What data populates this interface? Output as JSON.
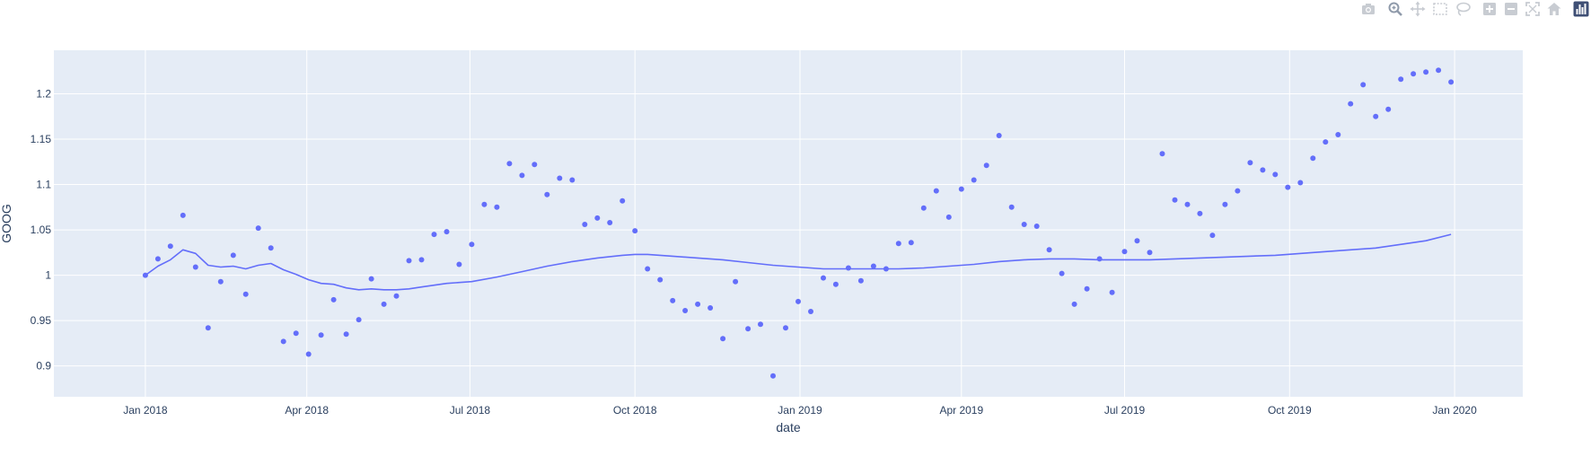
{
  "modebar": {
    "buttons": [
      {
        "icon": "camera-icon",
        "label": "Download plot as a png"
      },
      {
        "icon": "zoom-icon",
        "label": "Zoom"
      },
      {
        "icon": "pan-icon",
        "label": "Pan"
      },
      {
        "icon": "box-select-icon",
        "label": "Box Select"
      },
      {
        "icon": "lasso-select-icon",
        "label": "Lasso Select"
      },
      {
        "icon": "zoom-in-icon",
        "label": "Zoom in"
      },
      {
        "icon": "zoom-out-icon",
        "label": "Zoom out"
      },
      {
        "icon": "autoscale-icon",
        "label": "Autoscale"
      },
      {
        "icon": "reset-axes-icon",
        "label": "Reset axes"
      },
      {
        "icon": "plotly-logo-icon",
        "label": "Produced with Plotly"
      }
    ]
  },
  "colors": {
    "plot_bg": "#e5ecf6",
    "grid": "#ffffff",
    "series": "#636efa",
    "text": "#2a3f5f",
    "modebar_icon": "#c8ccd2",
    "modebar_active": "#8f9aaa"
  },
  "chart_data": {
    "type": "scatter",
    "xlabel": "date",
    "ylabel": "GOOG",
    "x_range": [
      "2017-11-11",
      "2020-02-08"
    ],
    "y_range": [
      0.866,
      1.248
    ],
    "grid": true,
    "legend": "none",
    "x_ticks": [
      {
        "date": "2018-01-01",
        "label": "Jan 2018"
      },
      {
        "date": "2018-04-01",
        "label": "Apr 2018"
      },
      {
        "date": "2018-07-01",
        "label": "Jul 2018"
      },
      {
        "date": "2018-10-01",
        "label": "Oct 2018"
      },
      {
        "date": "2019-01-01",
        "label": "Jan 2019"
      },
      {
        "date": "2019-04-01",
        "label": "Apr 2019"
      },
      {
        "date": "2019-07-01",
        "label": "Jul 2019"
      },
      {
        "date": "2019-10-01",
        "label": "Oct 2019"
      },
      {
        "date": "2020-01-01",
        "label": "Jan 2020"
      }
    ],
    "y_ticks": [
      {
        "value": 0.9,
        "label": "0.9"
      },
      {
        "value": 0.95,
        "label": "0.95"
      },
      {
        "value": 1.0,
        "label": "1"
      },
      {
        "value": 1.05,
        "label": "1.05"
      },
      {
        "value": 1.1,
        "label": "1.1"
      },
      {
        "value": 1.15,
        "label": "1.15"
      },
      {
        "value": 1.2,
        "label": "1.2"
      }
    ],
    "series": [
      {
        "mode": "markers",
        "x": [
          "2018-01-01",
          "2018-01-08",
          "2018-01-15",
          "2018-01-22",
          "2018-01-29",
          "2018-02-05",
          "2018-02-12",
          "2018-02-19",
          "2018-02-26",
          "2018-03-05",
          "2018-03-12",
          "2018-03-19",
          "2018-03-26",
          "2018-04-02",
          "2018-04-09",
          "2018-04-16",
          "2018-04-23",
          "2018-04-30",
          "2018-05-07",
          "2018-05-14",
          "2018-05-21",
          "2018-05-28",
          "2018-06-04",
          "2018-06-11",
          "2018-06-18",
          "2018-06-25",
          "2018-07-02",
          "2018-07-09",
          "2018-07-16",
          "2018-07-23",
          "2018-07-30",
          "2018-08-06",
          "2018-08-13",
          "2018-08-20",
          "2018-08-27",
          "2018-09-03",
          "2018-09-10",
          "2018-09-17",
          "2018-09-24",
          "2018-10-01",
          "2018-10-08",
          "2018-10-15",
          "2018-10-22",
          "2018-10-29",
          "2018-11-05",
          "2018-11-12",
          "2018-11-19",
          "2018-11-26",
          "2018-12-03",
          "2018-12-10",
          "2018-12-17",
          "2018-12-24",
          "2018-12-31",
          "2019-01-07",
          "2019-01-14",
          "2019-01-21",
          "2019-01-28",
          "2019-02-04",
          "2019-02-11",
          "2019-02-18",
          "2019-02-25",
          "2019-03-04",
          "2019-03-11",
          "2019-03-18",
          "2019-03-25",
          "2019-04-01",
          "2019-04-08",
          "2019-04-15",
          "2019-04-22",
          "2019-04-29",
          "2019-05-06",
          "2019-05-13",
          "2019-05-20",
          "2019-05-27",
          "2019-06-03",
          "2019-06-10",
          "2019-06-17",
          "2019-06-24",
          "2019-07-01",
          "2019-07-08",
          "2019-07-15",
          "2019-07-22",
          "2019-07-29",
          "2019-08-05",
          "2019-08-12",
          "2019-08-19",
          "2019-08-26",
          "2019-09-02",
          "2019-09-09",
          "2019-09-16",
          "2019-09-23",
          "2019-09-30",
          "2019-10-07",
          "2019-10-14",
          "2019-10-21",
          "2019-10-28",
          "2019-11-04",
          "2019-11-11",
          "2019-11-18",
          "2019-11-25",
          "2019-12-02",
          "2019-12-09",
          "2019-12-16",
          "2019-12-23",
          "2019-12-30"
        ],
        "y": [
          1.0,
          1.018,
          1.032,
          1.066,
          1.009,
          0.942,
          0.993,
          1.022,
          0.979,
          1.052,
          1.03,
          0.927,
          0.936,
          0.913,
          0.934,
          0.973,
          0.935,
          0.951,
          0.996,
          0.968,
          0.977,
          1.016,
          1.017,
          1.045,
          1.048,
          1.012,
          1.034,
          1.078,
          1.075,
          1.123,
          1.11,
          1.122,
          1.089,
          1.107,
          1.105,
          1.056,
          1.063,
          1.058,
          1.082,
          1.049,
          1.007,
          0.995,
          0.972,
          0.961,
          0.968,
          0.964,
          0.93,
          0.993,
          0.941,
          0.946,
          0.889,
          0.942,
          0.971,
          0.96,
          0.997,
          0.99,
          1.008,
          0.994,
          1.01,
          1.007,
          1.035,
          1.036,
          1.074,
          1.093,
          1.064,
          1.095,
          1.105,
          1.121,
          1.154,
          1.075,
          1.056,
          1.054,
          1.028,
          1.002,
          0.968,
          0.985,
          1.018,
          0.981,
          1.026,
          1.038,
          1.025,
          1.134,
          1.083,
          1.078,
          1.068,
          1.044,
          1.078,
          1.093,
          1.124,
          1.116,
          1.111,
          1.097,
          1.102,
          1.129,
          1.147,
          1.155,
          1.189,
          1.21,
          1.175,
          1.183,
          1.216,
          1.222,
          1.224,
          1.226,
          1.213
        ]
      },
      {
        "mode": "lines",
        "x": [
          "2018-01-01",
          "2018-01-08",
          "2018-01-15",
          "2018-01-22",
          "2018-01-29",
          "2018-02-05",
          "2018-02-12",
          "2018-02-19",
          "2018-02-26",
          "2018-03-05",
          "2018-03-12",
          "2018-03-19",
          "2018-03-26",
          "2018-04-02",
          "2018-04-09",
          "2018-04-16",
          "2018-04-23",
          "2018-04-30",
          "2018-05-07",
          "2018-05-14",
          "2018-05-21",
          "2018-05-28",
          "2018-06-04",
          "2018-06-11",
          "2018-06-18",
          "2018-06-25",
          "2018-07-02",
          "2018-07-16",
          "2018-07-30",
          "2018-08-13",
          "2018-08-27",
          "2018-09-10",
          "2018-09-24",
          "2018-10-01",
          "2018-10-08",
          "2018-10-22",
          "2018-11-05",
          "2018-11-19",
          "2018-12-03",
          "2018-12-17",
          "2018-12-31",
          "2019-01-14",
          "2019-01-28",
          "2019-02-11",
          "2019-02-25",
          "2019-03-11",
          "2019-03-25",
          "2019-04-08",
          "2019-04-22",
          "2019-05-06",
          "2019-05-20",
          "2019-06-03",
          "2019-06-17",
          "2019-07-01",
          "2019-07-15",
          "2019-07-29",
          "2019-08-26",
          "2019-09-23",
          "2019-10-21",
          "2019-11-18",
          "2019-12-16",
          "2019-12-30"
        ],
        "y": [
          1.0,
          1.01,
          1.017,
          1.028,
          1.024,
          1.011,
          1.009,
          1.01,
          1.007,
          1.011,
          1.013,
          1.006,
          1.001,
          0.995,
          0.991,
          0.99,
          0.986,
          0.984,
          0.985,
          0.984,
          0.984,
          0.985,
          0.987,
          0.989,
          0.991,
          0.992,
          0.993,
          0.998,
          1.004,
          1.01,
          1.015,
          1.019,
          1.022,
          1.023,
          1.023,
          1.021,
          1.019,
          1.017,
          1.014,
          1.011,
          1.009,
          1.007,
          1.007,
          1.007,
          1.007,
          1.008,
          1.01,
          1.012,
          1.015,
          1.017,
          1.018,
          1.018,
          1.017,
          1.017,
          1.017,
          1.018,
          1.02,
          1.022,
          1.026,
          1.03,
          1.038,
          1.045
        ]
      }
    ]
  }
}
